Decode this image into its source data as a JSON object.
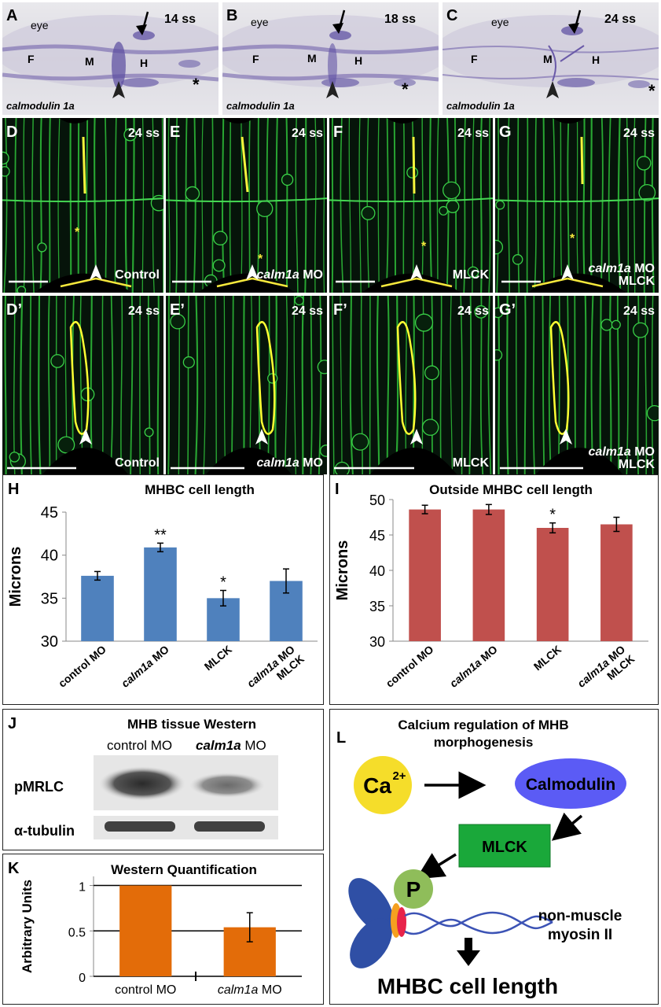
{
  "ish_panels": [
    {
      "letter": "A",
      "stage": "14 ss",
      "gene": "calmodulin 1a",
      "eye": "eye",
      "f": "F",
      "m": "M",
      "h": "H"
    },
    {
      "letter": "B",
      "stage": "18 ss",
      "gene": "calmodulin 1a",
      "eye": "eye",
      "f": "F",
      "m": "M",
      "h": "H"
    },
    {
      "letter": "C",
      "stage": "24 ss",
      "gene": "calmodulin 1a",
      "eye": "eye",
      "f": "F",
      "m": "M",
      "h": "H"
    }
  ],
  "confocal_top": [
    {
      "letter": "D",
      "stage": "24 ss",
      "cond_italic": "",
      "cond": "Control"
    },
    {
      "letter": "E",
      "stage": "24 ss",
      "cond_italic": "calm1a",
      "cond": " MO"
    },
    {
      "letter": "F",
      "stage": "24 ss",
      "cond_italic": "",
      "cond": "MLCK"
    },
    {
      "letter": "G",
      "stage": "24 ss",
      "cond_italic": "calm1a",
      "cond": " MO",
      "cond2": "MLCK"
    }
  ],
  "confocal_bottom": [
    {
      "letter": "D’",
      "stage": "24 ss",
      "cond_italic": "",
      "cond": "Control"
    },
    {
      "letter": "E’",
      "stage": "24 ss",
      "cond_italic": "calm1a",
      "cond": " MO"
    },
    {
      "letter": "F’",
      "stage": "24 ss",
      "cond_italic": "",
      "cond": "MLCK"
    },
    {
      "letter": "G’",
      "stage": "24 ss",
      "cond_italic": "calm1a",
      "cond": " MO",
      "cond2": "MLCK"
    }
  ],
  "asterisk": "*",
  "chart_data": [
    {
      "panel": "H",
      "type": "bar",
      "title": "MHBC cell length",
      "ylabel": "Microns",
      "categories": [
        "control MO",
        "calm1a MO",
        "MLCK",
        "calm1a MO MLCK"
      ],
      "values": [
        37.6,
        40.9,
        35.0,
        37.0
      ],
      "errors": [
        0.5,
        0.5,
        0.9,
        1.4
      ],
      "significance": [
        "",
        "**",
        "*",
        ""
      ],
      "ylim": [
        30,
        45
      ],
      "yticks": [
        30,
        35,
        40,
        45
      ],
      "color": "#4f81bd"
    },
    {
      "panel": "I",
      "type": "bar",
      "title": "Outside MHBC cell length",
      "ylabel": "Microns",
      "categories": [
        "control MO",
        "calm1a MO",
        "MLCK",
        "calm1a MO MLCK"
      ],
      "values": [
        48.6,
        48.6,
        46.0,
        46.5
      ],
      "errors": [
        0.6,
        0.7,
        0.7,
        1.0
      ],
      "significance": [
        "",
        "",
        "*",
        ""
      ],
      "ylim": [
        30,
        50
      ],
      "yticks": [
        30,
        35,
        40,
        45,
        50
      ],
      "color": "#c0504d"
    },
    {
      "panel": "K",
      "type": "bar",
      "title": "Western Quantification",
      "ylabel": "Arbitrary Units",
      "categories": [
        "control MO",
        "calm1a MO"
      ],
      "values": [
        1.0,
        0.54
      ],
      "errors": [
        0,
        0.16
      ],
      "significance": [
        "",
        ""
      ],
      "ylim": [
        0,
        1.1
      ],
      "yticks": [
        0,
        0.5,
        1
      ],
      "ytick_labels": [
        "0",
        "0.5",
        "1"
      ],
      "color": "#e36c09",
      "grid": true
    }
  ],
  "western": {
    "letter": "J",
    "title": "MHB tissue Western",
    "col1": "control MO",
    "col2_italic": "calm1a",
    "col2": " MO",
    "row1": "pMRLC",
    "row2": "α-tubulin"
  },
  "pathway": {
    "letter": "L",
    "title": "Calcium regulation of MHB morphogenesis",
    "ca": "Ca",
    "ca_sup": "2+",
    "calmodulin": "Calmodulin",
    "mlck": "MLCK",
    "p": "P",
    "myosin_line1": "non-muscle",
    "myosin_line2": "myosin II",
    "outcome": "MHBC cell length",
    "colors": {
      "ca": "#f5dd2a",
      "calmodulin": "#5b5bf5",
      "mlck": "#1aa83a",
      "p": "#8fbd5a"
    }
  }
}
